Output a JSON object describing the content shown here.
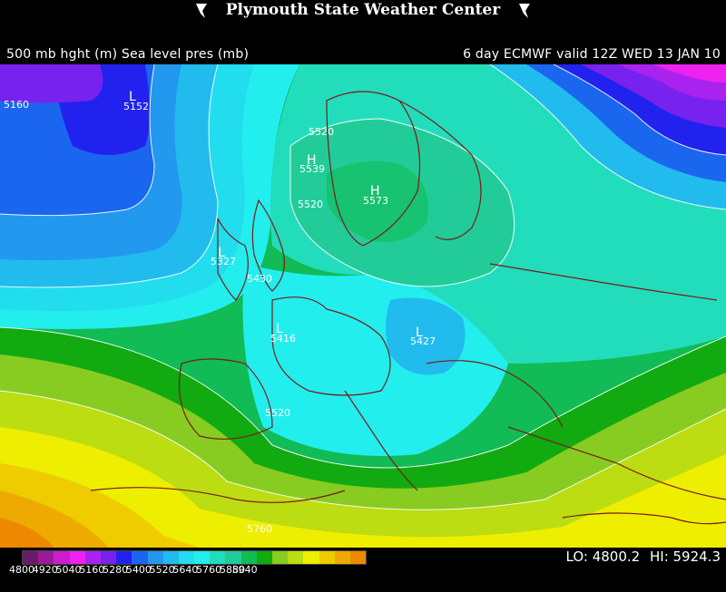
{
  "header": {
    "title": "Plymouth State Weather Center"
  },
  "subtitle": {
    "left": "500 mb hght (m) Sea level pres (mb)",
    "right": "6 day ECMWF  valid 12Z  WED 13 JAN 10"
  },
  "map": {
    "contour_labels": [
      "5160",
      "5152",
      "5520",
      "5539",
      "5573",
      "5520",
      "5327",
      "5430",
      "5416",
      "5427",
      "5520",
      "5760"
    ],
    "pressure_marks": [
      "L",
      "H",
      "H",
      "L",
      "L",
      "L"
    ]
  },
  "legend": {
    "colors": [
      "#6a1a6a",
      "#9a1a9a",
      "#cc1ccc",
      "#ee22ee",
      "#aa22ee",
      "#7722ee",
      "#2222ee",
      "#1a66ee",
      "#2299ee",
      "#22bbee",
      "#22ddee",
      "#22eeee",
      "#22ddbb",
      "#22cc99",
      "#11bb55",
      "#11aa11",
      "#88cc22",
      "#bbdd11",
      "#eeee00",
      "#eecc00",
      "#eeaa00",
      "#ee8800"
    ],
    "ticks": [
      "4800",
      "4920",
      "5040",
      "5160",
      "5280",
      "5400",
      "5520",
      "5640",
      "5760",
      "5880",
      "5940"
    ]
  },
  "range": {
    "lo_label": "LO: 4800.2",
    "hi_label": "HI: 5924.3"
  }
}
